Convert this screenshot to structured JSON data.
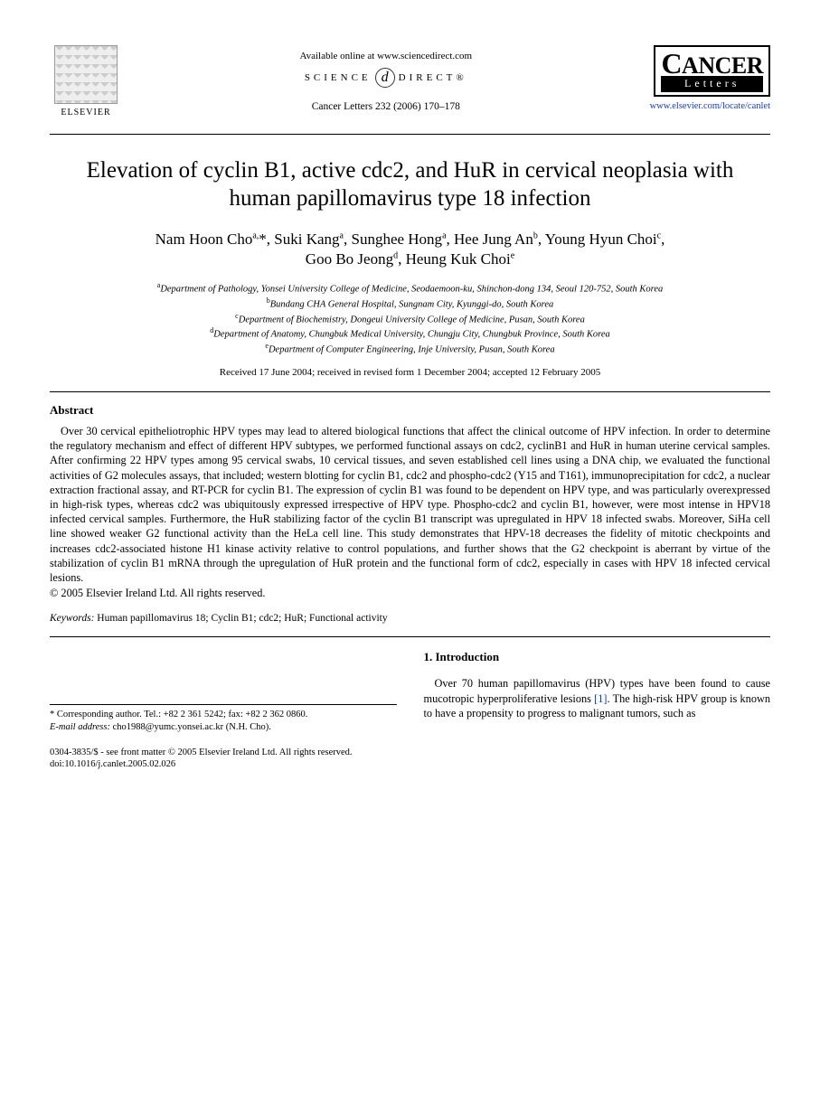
{
  "header": {
    "publisher_name": "ELSEVIER",
    "available_online": "Available online at www.sciencedirect.com",
    "science_left": "SCIENCE",
    "science_right": "DIRECT®",
    "citation": "Cancer Letters 232 (2006) 170–178",
    "journal_name_top": "CANCER",
    "journal_name_band": "Letters",
    "journal_url": "www.elsevier.com/locate/canlet"
  },
  "article": {
    "title": "Elevation of cyclin B1, active cdc2, and HuR in cervical neoplasia with human papillomavirus type 18 infection",
    "authors_html": "Nam Hoon Cho<sup>a,</sup>*, Suki Kang<sup>a</sup>, Sunghee Hong<sup>a</sup>, Hee Jung An<sup>b</sup>, Young Hyun Choi<sup>c</sup>, Goo Bo Jeong<sup>d</sup>, Heung Kuk Choi<sup>e</sup>",
    "affiliations": [
      {
        "sup": "a",
        "text": "Department of Pathology, Yonsei University College of Medicine, Seodaemoon-ku, Shinchon-dong 134, Seoul 120-752, South Korea"
      },
      {
        "sup": "b",
        "text": "Bundang CHA General Hospital, Sungnam City, Kyunggi-do, South Korea"
      },
      {
        "sup": "c",
        "text": "Department of Biochemistry, Dongeui University College of Medicine, Pusan, South Korea"
      },
      {
        "sup": "d",
        "text": "Department of Anatomy, Chungbuk Medical University, Chungju City, Chungbuk Province, South Korea"
      },
      {
        "sup": "e",
        "text": "Department of Computer Engineering, Inje University, Pusan, South Korea"
      }
    ],
    "history": "Received 17 June 2004; received in revised form 1 December 2004; accepted 12 February 2005"
  },
  "abstract": {
    "heading": "Abstract",
    "body": "Over 30 cervical epitheliotrophic HPV types may lead to altered biological functions that affect the clinical outcome of HPV infection. In order to determine the regulatory mechanism and effect of different HPV subtypes, we performed functional assays on cdc2, cyclinB1 and HuR in human uterine cervical samples. After confirming 22 HPV types among 95 cervical swabs, 10 cervical tissues, and seven established cell lines using a DNA chip, we evaluated the functional activities of G2 molecules assays, that included; western blotting for cyclin B1, cdc2 and phospho-cdc2 (Y15 and T161), immunoprecipitation for cdc2, a nuclear extraction fractional assay, and RT-PCR for cyclin B1. The expression of cyclin B1 was found to be dependent on HPV type, and was particularly overexpressed in high-risk types, whereas cdc2 was ubiquitously expressed irrespective of HPV type. Phospho-cdc2 and cyclin B1, however, were most intense in HPV18 infected cervical samples. Furthermore, the HuR stabilizing factor of the cyclin B1 transcript was upregulated in HPV 18 infected swabs. Moreover, SiHa cell line showed weaker G2 functional activity than the HeLa cell line. This study demonstrates that HPV-18 decreases the fidelity of mitotic checkpoints and increases cdc2-associated histone H1 kinase activity relative to control populations, and further shows that the G2 checkpoint is aberrant by virtue of the stabilization of cyclin B1 mRNA through the upregulation of HuR protein and the functional form of cdc2, especially in cases with HPV 18 infected cervical lesions.",
    "copyright": "© 2005 Elsevier Ireland Ltd. All rights reserved."
  },
  "keywords": {
    "label": "Keywords:",
    "text": " Human papillomavirus 18; Cyclin B1; cdc2; HuR; Functional activity"
  },
  "introduction": {
    "heading": "1. Introduction",
    "body_pre": "Over 70 human papillomavirus (HPV) types have been found to cause mucotropic hyperproliferative lesions ",
    "ref": "[1]",
    "body_post": ". The high-risk HPV group is known to have a propensity to progress to malignant tumors, such as"
  },
  "footnotes": {
    "corresponding": "* Corresponding author. Tel.: +82 2 361 5242; fax: +82 2 362 0860.",
    "email_label": "E-mail address:",
    "email_value": " cho1988@yumc.yonsei.ac.kr (N.H. Cho)."
  },
  "footer": {
    "line1": "0304-3835/$ - see front matter © 2005 Elsevier Ireland Ltd. All rights reserved.",
    "line2": "doi:10.1016/j.canlet.2005.02.026"
  },
  "colors": {
    "link": "#1a3fb5",
    "text": "#000000",
    "background": "#ffffff"
  }
}
